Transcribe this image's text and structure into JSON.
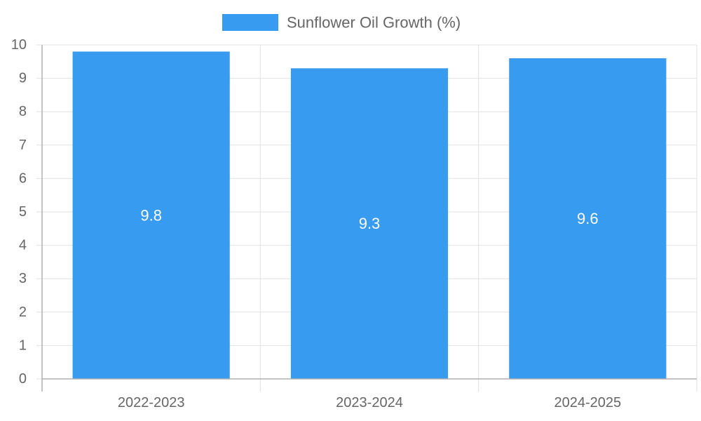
{
  "colors": {
    "bar": "#379BEF",
    "grid": "#e2e2e2",
    "axis": "#b0b0b0",
    "text": "#666666",
    "value_label": "#ffffff"
  },
  "chart_data": {
    "type": "bar",
    "categories": [
      "2022-2023",
      "2023-2024",
      "2024-2025"
    ],
    "series": [
      {
        "name": "Sunflower Oil Growth (%)",
        "values": [
          9.8,
          9.3,
          9.6
        ]
      }
    ],
    "data_labels": [
      "9.8",
      "9.3",
      "9.6"
    ],
    "y_ticks": [
      "0",
      "1",
      "2",
      "3",
      "4",
      "5",
      "6",
      "7",
      "8",
      "9",
      "10"
    ],
    "ylim": [
      0,
      10
    ],
    "grid": true,
    "legend": "top-center",
    "title": "",
    "xlabel": "",
    "ylabel": ""
  }
}
